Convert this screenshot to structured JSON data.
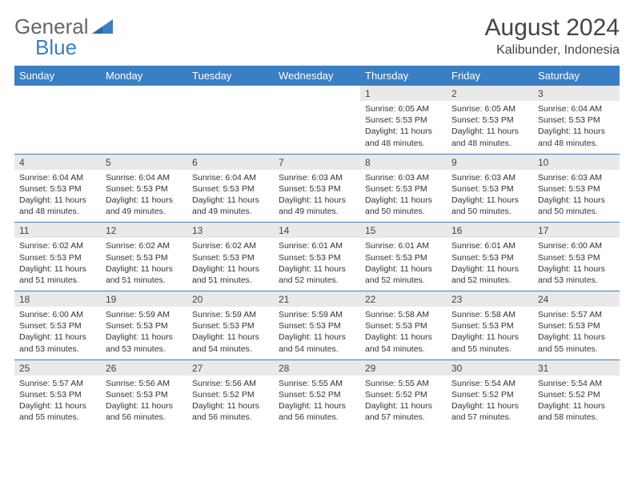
{
  "logo": {
    "text1": "General",
    "text2": "Blue",
    "triangle_color": "#3a7fc4"
  },
  "title": "August 2024",
  "location": "Kalibunder, Indonesia",
  "header_color": "#3a7fc4",
  "header_text_color": "#ffffff",
  "grid_line_color": "#3a7fc4",
  "day_bg": "#e9e9e9",
  "weekdays": [
    "Sunday",
    "Monday",
    "Tuesday",
    "Wednesday",
    "Thursday",
    "Friday",
    "Saturday"
  ],
  "weeks": [
    [
      null,
      null,
      null,
      null,
      {
        "d": "1",
        "sr": "6:05 AM",
        "ss": "5:53 PM",
        "dl": "11 hours and 48 minutes."
      },
      {
        "d": "2",
        "sr": "6:05 AM",
        "ss": "5:53 PM",
        "dl": "11 hours and 48 minutes."
      },
      {
        "d": "3",
        "sr": "6:04 AM",
        "ss": "5:53 PM",
        "dl": "11 hours and 48 minutes."
      }
    ],
    [
      {
        "d": "4",
        "sr": "6:04 AM",
        "ss": "5:53 PM",
        "dl": "11 hours and 48 minutes."
      },
      {
        "d": "5",
        "sr": "6:04 AM",
        "ss": "5:53 PM",
        "dl": "11 hours and 49 minutes."
      },
      {
        "d": "6",
        "sr": "6:04 AM",
        "ss": "5:53 PM",
        "dl": "11 hours and 49 minutes."
      },
      {
        "d": "7",
        "sr": "6:03 AM",
        "ss": "5:53 PM",
        "dl": "11 hours and 49 minutes."
      },
      {
        "d": "8",
        "sr": "6:03 AM",
        "ss": "5:53 PM",
        "dl": "11 hours and 50 minutes."
      },
      {
        "d": "9",
        "sr": "6:03 AM",
        "ss": "5:53 PM",
        "dl": "11 hours and 50 minutes."
      },
      {
        "d": "10",
        "sr": "6:03 AM",
        "ss": "5:53 PM",
        "dl": "11 hours and 50 minutes."
      }
    ],
    [
      {
        "d": "11",
        "sr": "6:02 AM",
        "ss": "5:53 PM",
        "dl": "11 hours and 51 minutes."
      },
      {
        "d": "12",
        "sr": "6:02 AM",
        "ss": "5:53 PM",
        "dl": "11 hours and 51 minutes."
      },
      {
        "d": "13",
        "sr": "6:02 AM",
        "ss": "5:53 PM",
        "dl": "11 hours and 51 minutes."
      },
      {
        "d": "14",
        "sr": "6:01 AM",
        "ss": "5:53 PM",
        "dl": "11 hours and 52 minutes."
      },
      {
        "d": "15",
        "sr": "6:01 AM",
        "ss": "5:53 PM",
        "dl": "11 hours and 52 minutes."
      },
      {
        "d": "16",
        "sr": "6:01 AM",
        "ss": "5:53 PM",
        "dl": "11 hours and 52 minutes."
      },
      {
        "d": "17",
        "sr": "6:00 AM",
        "ss": "5:53 PM",
        "dl": "11 hours and 53 minutes."
      }
    ],
    [
      {
        "d": "18",
        "sr": "6:00 AM",
        "ss": "5:53 PM",
        "dl": "11 hours and 53 minutes."
      },
      {
        "d": "19",
        "sr": "5:59 AM",
        "ss": "5:53 PM",
        "dl": "11 hours and 53 minutes."
      },
      {
        "d": "20",
        "sr": "5:59 AM",
        "ss": "5:53 PM",
        "dl": "11 hours and 54 minutes."
      },
      {
        "d": "21",
        "sr": "5:59 AM",
        "ss": "5:53 PM",
        "dl": "11 hours and 54 minutes."
      },
      {
        "d": "22",
        "sr": "5:58 AM",
        "ss": "5:53 PM",
        "dl": "11 hours and 54 minutes."
      },
      {
        "d": "23",
        "sr": "5:58 AM",
        "ss": "5:53 PM",
        "dl": "11 hours and 55 minutes."
      },
      {
        "d": "24",
        "sr": "5:57 AM",
        "ss": "5:53 PM",
        "dl": "11 hours and 55 minutes."
      }
    ],
    [
      {
        "d": "25",
        "sr": "5:57 AM",
        "ss": "5:53 PM",
        "dl": "11 hours and 55 minutes."
      },
      {
        "d": "26",
        "sr": "5:56 AM",
        "ss": "5:53 PM",
        "dl": "11 hours and 56 minutes."
      },
      {
        "d": "27",
        "sr": "5:56 AM",
        "ss": "5:52 PM",
        "dl": "11 hours and 56 minutes."
      },
      {
        "d": "28",
        "sr": "5:55 AM",
        "ss": "5:52 PM",
        "dl": "11 hours and 56 minutes."
      },
      {
        "d": "29",
        "sr": "5:55 AM",
        "ss": "5:52 PM",
        "dl": "11 hours and 57 minutes."
      },
      {
        "d": "30",
        "sr": "5:54 AM",
        "ss": "5:52 PM",
        "dl": "11 hours and 57 minutes."
      },
      {
        "d": "31",
        "sr": "5:54 AM",
        "ss": "5:52 PM",
        "dl": "11 hours and 58 minutes."
      }
    ]
  ],
  "labels": {
    "sunrise": "Sunrise:",
    "sunset": "Sunset:",
    "daylight": "Daylight:"
  }
}
